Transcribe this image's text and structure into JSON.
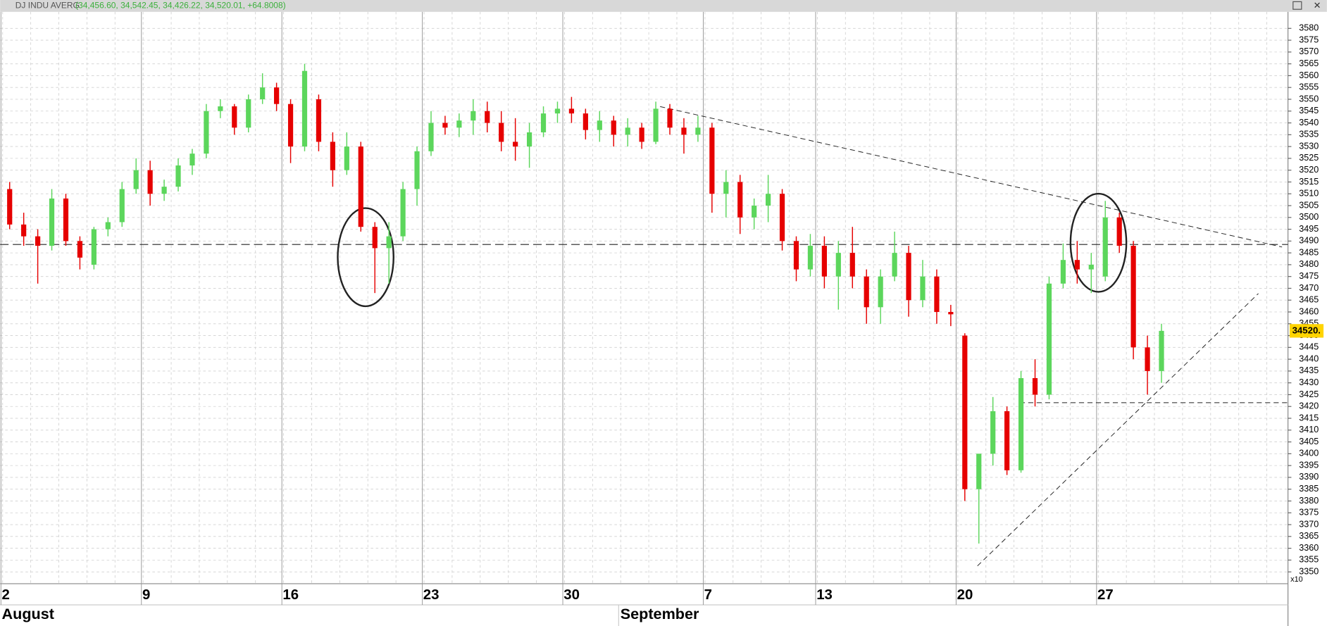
{
  "chart_data": {
    "type": "candlestick",
    "title": "DJ INDU AVERG",
    "quote": "(34,456.60, 34,542.45, 34,426.22, 34,520.01, +64.8008)",
    "last_price_label": "34520.",
    "scale_label": "x10",
    "months": [
      "August",
      "September"
    ],
    "categories": [
      "2",
      null,
      null,
      null,
      null,
      null,
      null,
      null,
      null,
      null,
      "9",
      null,
      null,
      null,
      null,
      null,
      null,
      null,
      null,
      null,
      "16",
      null,
      null,
      null,
      null,
      null,
      null,
      null,
      null,
      null,
      "23",
      null,
      null,
      null,
      null,
      null,
      null,
      null,
      null,
      null,
      "30",
      null,
      null,
      null,
      null,
      null,
      null,
      null,
      null,
      null,
      "7",
      null,
      null,
      null,
      null,
      null,
      null,
      null,
      "13",
      null,
      null,
      null,
      null,
      null,
      null,
      null,
      null,
      null,
      "20",
      null,
      null,
      null,
      null,
      null,
      null,
      null,
      null,
      null,
      "27",
      null,
      null,
      null,
      null
    ],
    "open": [
      3512,
      3497,
      3492,
      3488,
      3508,
      3490,
      3480,
      3495,
      3498,
      3512,
      3520,
      3510,
      3513,
      3522,
      3527,
      3545,
      3547,
      3538,
      3550,
      3555,
      3548,
      3530,
      3550,
      3532,
      3520,
      3530,
      3496,
      3487,
      3492,
      3512,
      3528,
      3540,
      3538,
      3541,
      3545,
      3540,
      3532,
      3530,
      3536,
      3544,
      3546,
      3544,
      3537,
      3541,
      3535,
      3538,
      3532,
      3546,
      3538,
      3535,
      3538,
      3510,
      3515,
      3500,
      3505,
      3510,
      3490,
      3478,
      3488,
      3475,
      3485,
      3475,
      3462,
      3475,
      3485,
      3465,
      3475,
      3460,
      3450,
      3385,
      3400,
      3418,
      3393,
      3432,
      3425,
      3472,
      3482,
      3478,
      3475,
      3500,
      3488,
      3445,
      3435
    ],
    "high": [
      3515,
      3502,
      3495,
      3512,
      3510,
      3492,
      3496,
      3500,
      3515,
      3525,
      3524,
      3516,
      3525,
      3529,
      3548,
      3550,
      3548,
      3552,
      3561,
      3557,
      3550,
      3565,
      3552,
      3536,
      3536,
      3532,
      3498,
      3498,
      3515,
      3530,
      3545,
      3543,
      3544,
      3550,
      3549,
      3545,
      3542,
      3540,
      3547,
      3549,
      3551,
      3546,
      3545,
      3543,
      3542,
      3540,
      3549,
      3548,
      3542,
      3543,
      3540,
      3520,
      3518,
      3508,
      3518,
      3512,
      3492,
      3493,
      3492,
      3490,
      3496,
      3478,
      3478,
      3494,
      3488,
      3482,
      3478,
      3463,
      3451,
      3400,
      3424,
      3420,
      3435,
      3440,
      3475,
      3489,
      3490,
      3485,
      3507,
      3502,
      3490,
      3450,
      3455
    ],
    "low": [
      3495,
      3488,
      3472,
      3486,
      3488,
      3478,
      3478,
      3492,
      3496,
      3510,
      3505,
      3507,
      3511,
      3518,
      3525,
      3542,
      3535,
      3536,
      3548,
      3545,
      3523,
      3528,
      3528,
      3513,
      3518,
      3494,
      3468,
      3472,
      3490,
      3505,
      3526,
      3535,
      3534,
      3535,
      3536,
      3528,
      3524,
      3521,
      3534,
      3540,
      3540,
      3533,
      3532,
      3530,
      3530,
      3529,
      3531,
      3535,
      3527,
      3532,
      3502,
      3500,
      3493,
      3495,
      3498,
      3486,
      3473,
      3475,
      3470,
      3461,
      3470,
      3455,
      3455,
      3473,
      3458,
      3462,
      3455,
      3454,
      3380,
      3362,
      3395,
      3391,
      3392,
      3420,
      3423,
      3470,
      3472,
      3468,
      3473,
      3485,
      3440,
      3425,
      3430
    ],
    "close": [
      3497,
      3492,
      3488,
      3508,
      3490,
      3483,
      3495,
      3498,
      3512,
      3520,
      3510,
      3513,
      3522,
      3527,
      3545,
      3547,
      3538,
      3550,
      3555,
      3548,
      3530,
      3562,
      3532,
      3520,
      3530,
      3496,
      3487,
      3492,
      3512,
      3528,
      3540,
      3538,
      3541,
      3545,
      3540,
      3532,
      3530,
      3536,
      3544,
      3546,
      3544,
      3537,
      3541,
      3535,
      3538,
      3532,
      3546,
      3538,
      3535,
      3538,
      3510,
      3515,
      3500,
      3505,
      3510,
      3490,
      3478,
      3488,
      3475,
      3485,
      3475,
      3462,
      3475,
      3485,
      3465,
      3475,
      3460,
      3459,
      3385,
      3400,
      3418,
      3393,
      3432,
      3425,
      3472,
      3482,
      3478,
      3480,
      3500,
      3488,
      3445,
      3435,
      3452
    ],
    "up_color": "#5cd65c",
    "down_color": "#e60000",
    "ylim": [
      3345,
      3587
    ],
    "yticks": [
      3350,
      3355,
      3360,
      3365,
      3370,
      3375,
      3380,
      3385,
      3390,
      3395,
      3400,
      3405,
      3410,
      3415,
      3420,
      3425,
      3430,
      3435,
      3440,
      3445,
      3450,
      3455,
      3460,
      3465,
      3470,
      3475,
      3480,
      3485,
      3490,
      3495,
      3500,
      3505,
      3510,
      3515,
      3520,
      3525,
      3530,
      3535,
      3540,
      3545,
      3550,
      3555,
      3560,
      3565,
      3570,
      3575,
      3580
    ],
    "grid": true
  }
}
